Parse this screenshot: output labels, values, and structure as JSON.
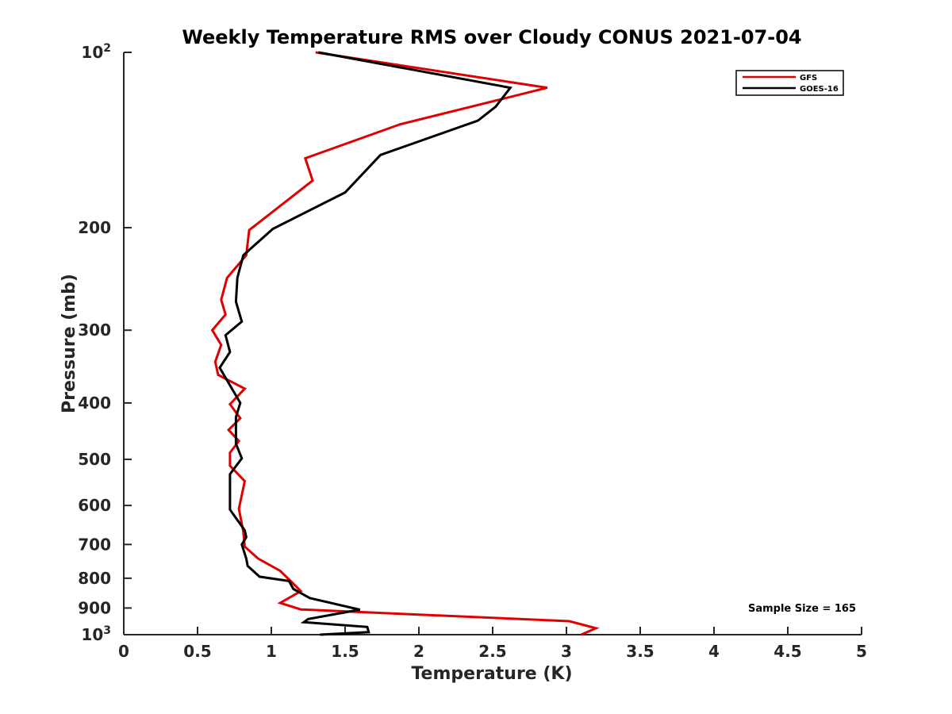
{
  "chart_data": {
    "type": "line",
    "title": "Weekly Temperature RMS over Cloudy CONUS 2021-07-04",
    "xlabel": "Temperature (K)",
    "ylabel": "Pressure (mb)",
    "xlim": [
      0,
      5
    ],
    "ylim": [
      100,
      1000
    ],
    "yscale": "log",
    "yreversed": true,
    "grid": false,
    "x_ticks": [
      0,
      0.5,
      1,
      1.5,
      2,
      2.5,
      3,
      3.5,
      4,
      4.5,
      5
    ],
    "x_tick_labels": [
      "0",
      "0.5",
      "1",
      "1.5",
      "2",
      "2.5",
      "3",
      "3.5",
      "4",
      "4.5",
      "5"
    ],
    "y_ticks": [
      {
        "value": 100,
        "base": "10",
        "exp": "2"
      },
      {
        "value": 200,
        "label": "200"
      },
      {
        "value": 300,
        "label": "300"
      },
      {
        "value": 400,
        "label": "400"
      },
      {
        "value": 500,
        "label": "500"
      },
      {
        "value": 600,
        "label": "600"
      },
      {
        "value": 700,
        "label": "700"
      },
      {
        "value": 800,
        "label": "800"
      },
      {
        "value": 900,
        "label": "900"
      },
      {
        "value": 1000,
        "base": "10",
        "exp": "3"
      }
    ],
    "legend_position": "top-right",
    "annotation": "Sample Size = 165",
    "series": [
      {
        "name": "GFS",
        "color": "#e00000",
        "x": [
          1.3,
          2.87,
          1.87,
          1.23,
          1.28,
          0.85,
          0.83,
          0.7,
          0.66,
          0.69,
          0.6,
          0.66,
          0.62,
          0.64,
          0.82,
          0.72,
          0.79,
          0.71,
          0.78,
          0.72,
          0.72,
          0.82,
          0.78,
          0.81,
          0.82,
          0.91,
          1.06,
          1.14,
          1.2,
          1.06,
          1.2,
          3.02,
          3.2,
          3.1
        ],
        "y": [
          100,
          115,
          133,
          152,
          166,
          202,
          223,
          244,
          266,
          282,
          300,
          318,
          340,
          358,
          378,
          402,
          425,
          445,
          465,
          487,
          513,
          545,
          608,
          665,
          706,
          740,
          777,
          813,
          842,
          882,
          905,
          948,
          975,
          1000
        ]
      },
      {
        "name": "GOES-16",
        "color": "#000000",
        "x": [
          1.32,
          2.62,
          2.52,
          2.4,
          1.74,
          1.5,
          1.01,
          0.81,
          0.77,
          0.76,
          0.8,
          0.69,
          0.72,
          0.65,
          0.79,
          0.76,
          0.76,
          0.8,
          0.72,
          0.72,
          0.82,
          0.83,
          0.8,
          0.83,
          0.84,
          0.92,
          1.12,
          1.15,
          1.26,
          1.6,
          1.25,
          1.22,
          1.65,
          1.66,
          1.33
        ],
        "y": [
          100,
          115,
          124,
          131,
          150,
          174,
          201,
          223,
          244,
          268,
          290,
          306,
          327,
          348,
          400,
          423,
          470,
          498,
          530,
          610,
          662,
          680,
          700,
          740,
          762,
          795,
          809,
          835,
          865,
          906,
          940,
          952,
          970,
          990,
          1000
        ]
      }
    ]
  }
}
